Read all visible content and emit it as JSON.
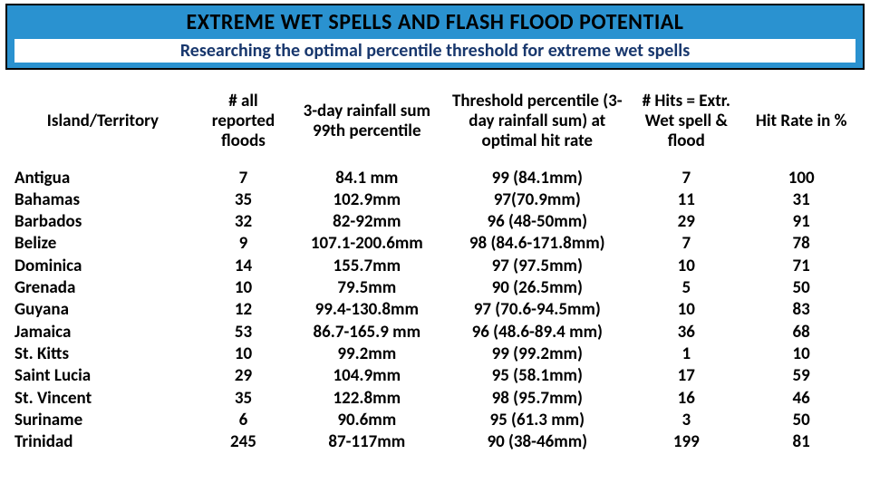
{
  "header": {
    "title": "EXTREME WET SPELLS AND FLASH FLOOD POTENTIAL",
    "subtitle": "Researching the optimal percentile threshold for extreme wet spells"
  },
  "table": {
    "columns": [
      "Island/Territory",
      "# all\nreported\nfloods",
      "3-day rainfall sum\n99th percentile",
      "Threshold percentile\n(3-day rainfall sum)\nat optimal hit rate",
      "# Hits\n= Extr. Wet\nspell & flood",
      "Hit Rate in %"
    ],
    "rows": [
      {
        "island": "Antigua",
        "floods": "7",
        "p99": "84.1 mm",
        "threshold": "99 (84.1mm)",
        "hits": "7",
        "hitrate": "100"
      },
      {
        "island": "Bahamas",
        "floods": "35",
        "p99": "102.9mm",
        "threshold": "97(70.9mm)",
        "hits": "11",
        "hitrate": "31"
      },
      {
        "island": "Barbados",
        "floods": "32",
        "p99": "82-92mm",
        "threshold": "96 (48-50mm)",
        "hits": "29",
        "hitrate": "91"
      },
      {
        "island": "Belize",
        "floods": "9",
        "p99": "107.1-200.6mm",
        "threshold": "98 (84.6-171.8mm)",
        "hits": "7",
        "hitrate": "78"
      },
      {
        "island": "Dominica",
        "floods": "14",
        "p99": "155.7mm",
        "threshold": "97 (97.5mm)",
        "hits": "10",
        "hitrate": "71"
      },
      {
        "island": "Grenada",
        "floods": "10",
        "p99": "79.5mm",
        "threshold": "90 (26.5mm)",
        "hits": "5",
        "hitrate": "50"
      },
      {
        "island": "Guyana",
        "floods": "12",
        "p99": "99.4-130.8mm",
        "threshold": "97 (70.6-94.5mm)",
        "hits": "10",
        "hitrate": "83"
      },
      {
        "island": "Jamaica",
        "floods": "53",
        "p99": "86.7-165.9 mm",
        "threshold": "96 (48.6-89.4 mm)",
        "hits": "36",
        "hitrate": "68"
      },
      {
        "island": "St. Kitts",
        "floods": "10",
        "p99": "99.2mm",
        "threshold": "99 (99.2mm)",
        "hits": "1",
        "hitrate": "10"
      },
      {
        "island": "Saint Lucia",
        "floods": "29",
        "p99": "104.9mm",
        "threshold": "95 (58.1mm)",
        "hits": "17",
        "hitrate": "59"
      },
      {
        "island": "St. Vincent",
        "floods": "35",
        "p99": "122.8mm",
        "threshold": "98 (95.7mm)",
        "hits": "16",
        "hitrate": "46"
      },
      {
        "island": "Suriname",
        "floods": "6",
        "p99": "90.6mm",
        "threshold": "95 (61.3 mm)",
        "hits": "3",
        "hitrate": "50"
      },
      {
        "island": "Trinidad",
        "floods": "245",
        "p99": "87-117mm",
        "threshold": "90 (38-46mm)",
        "hits": "199",
        "hitrate": "81"
      }
    ]
  },
  "styling": {
    "banner_bg": "#2a92d0",
    "banner_border": "#000000",
    "subtitle_color": "#18376d",
    "text_color": "#000000",
    "font_family": "Calibri",
    "title_fontsize_pt": 18,
    "subtitle_fontsize_pt": 15,
    "table_fontsize_pt": 14,
    "table_fontweight": "bold"
  }
}
